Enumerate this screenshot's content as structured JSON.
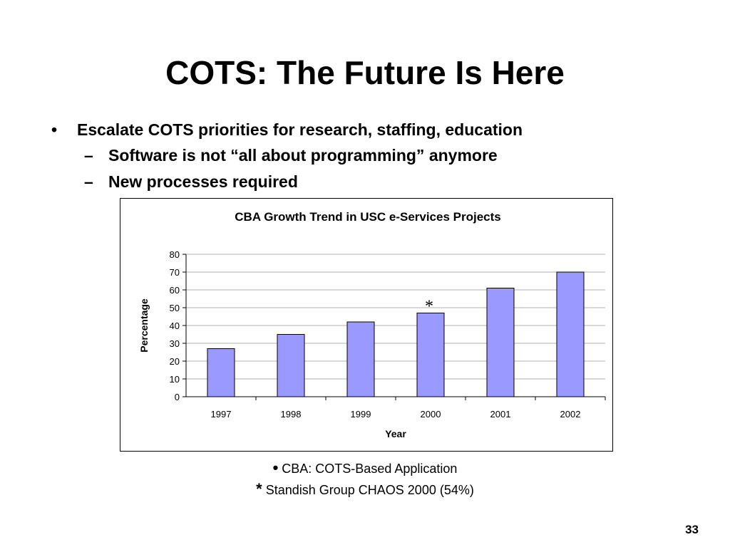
{
  "slide": {
    "title": "COTS: The Future Is Here",
    "bullets": [
      {
        "marker": "•",
        "text": "Escalate COTS priorities for research, staffing, education"
      },
      {
        "marker": "–",
        "text": "Software is not “all about programming” anymore"
      },
      {
        "marker": "–",
        "text": "New processes required"
      }
    ],
    "notes": [
      {
        "symbol": "•",
        "text": "CBA: COTS-Based Application"
      },
      {
        "symbol": "*",
        "text": "Standish Group CHAOS 2000 (54%)"
      }
    ],
    "page_number": "33"
  },
  "chart_data": {
    "type": "bar",
    "title": "CBA Growth Trend in USC e-Services Projects",
    "xlabel": "Year",
    "ylabel": "Percentage",
    "categories": [
      "1997",
      "1998",
      "1999",
      "2000",
      "2001",
      "2002"
    ],
    "values": [
      27,
      35,
      42,
      47,
      61,
      70
    ],
    "ylim": [
      0,
      80
    ],
    "yticks": [
      "0",
      "10",
      "20",
      "30",
      "40",
      "50",
      "60",
      "70",
      "80"
    ],
    "annotation": {
      "category": "2000",
      "text": "*"
    },
    "grid": true,
    "bar_color": "#9999ff"
  }
}
